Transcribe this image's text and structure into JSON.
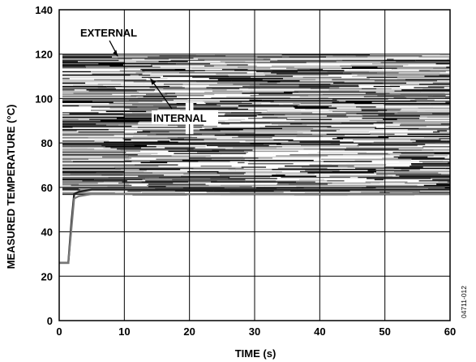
{
  "chart_data": {
    "type": "line",
    "xlabel": "TIME (s)",
    "ylabel": "MEASURED TEMPERATURE (°C)",
    "xlim": [
      0,
      60
    ],
    "ylim": [
      0,
      140
    ],
    "x_ticks": [
      "0",
      "10",
      "20",
      "30",
      "40",
      "50",
      "60"
    ],
    "y_ticks": [
      "0",
      "20",
      "40",
      "60",
      "80",
      "100",
      "120",
      "140"
    ],
    "grid": true,
    "series": [
      {
        "name": "EXTERNAL",
        "x": [
          0,
          1.4,
          1.9,
          2.3,
          3,
          5,
          10,
          20,
          30,
          40,
          50,
          60
        ],
        "y": [
          26,
          26,
          45,
          57,
          58,
          59,
          59,
          59,
          59,
          59,
          59,
          59
        ]
      },
      {
        "name": "INTERNAL",
        "x": [
          0,
          1.4,
          1.9,
          2.3,
          3,
          5,
          10,
          20,
          30,
          40,
          50,
          60
        ],
        "y": [
          26,
          26,
          42,
          55,
          56,
          57,
          57,
          57,
          57,
          57,
          57,
          57
        ]
      }
    ],
    "band": {
      "y_low": 57,
      "y_high": 120,
      "x_start": 0.5,
      "x_end": 60
    },
    "annotations": [
      {
        "text": "EXTERNAL",
        "arrow_to": [
          9,
          119
        ]
      },
      {
        "text": "INTERNAL",
        "arrow_to": [
          14,
          109
        ]
      }
    ],
    "figure_code": "04711-012"
  }
}
